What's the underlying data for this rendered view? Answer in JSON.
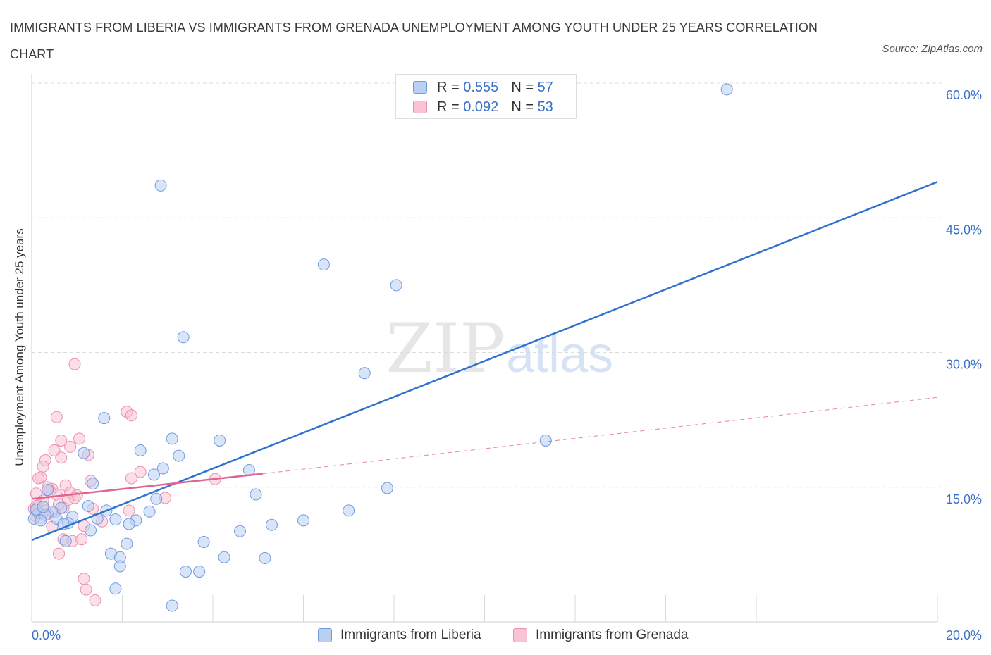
{
  "title": "IMMIGRANTS FROM LIBERIA VS IMMIGRANTS FROM GRENADA UNEMPLOYMENT AMONG YOUTH UNDER 25 YEARS CORRELATION CHART",
  "source": "Source: ZipAtlas.com",
  "watermark": {
    "zip": "ZIP",
    "atlas": "atlas"
  },
  "legend": {
    "liberia": {
      "r_label": "R =",
      "r_value": "0.555",
      "n_label": "N =",
      "n_value": "57"
    },
    "grenada": {
      "r_label": "R =",
      "r_value": "0.092",
      "n_label": "N =",
      "n_value": "53"
    }
  },
  "colors": {
    "liberia_fill": "#b8d0f2",
    "liberia_stroke": "#6f9be0",
    "liberia_line": "#2f73cf",
    "grenada_fill": "#f9c3d4",
    "grenada_stroke": "#ec8fae",
    "grenada_line": "#e0648f",
    "grid": "#dcdcdc",
    "axis_label": "#3b72c8"
  },
  "chart_data": {
    "type": "scatter",
    "title": "IMMIGRANTS FROM LIBERIA VS IMMIGRANTS FROM GRENADA UNEMPLOYMENT AMONG YOUTH UNDER 25 YEARS CORRELATION CHART",
    "xlabel": "",
    "ylabel": "Unemployment Among Youth under 25 years",
    "xlim": [
      0,
      20
    ],
    "ylim": [
      0,
      60
    ],
    "x_tick_labels": [
      "0.0%",
      "20.0%"
    ],
    "y_ticks": [
      15,
      30,
      45,
      60
    ],
    "y_tick_labels": [
      "15.0%",
      "30.0%",
      "45.0%",
      "60.0%"
    ],
    "grid": true,
    "series": [
      {
        "name": "Immigrants from Liberia",
        "points": [
          [
            15.35,
            59.3
          ],
          [
            2.85,
            48.6
          ],
          [
            6.45,
            39.8
          ],
          [
            8.05,
            37.5
          ],
          [
            3.35,
            31.7
          ],
          [
            7.35,
            27.7
          ],
          [
            1.6,
            22.7
          ],
          [
            11.35,
            20.2
          ],
          [
            3.1,
            20.4
          ],
          [
            4.15,
            20.2
          ],
          [
            2.4,
            19.1
          ],
          [
            3.25,
            18.5
          ],
          [
            1.15,
            18.8
          ],
          [
            2.9,
            17.1
          ],
          [
            4.8,
            16.9
          ],
          [
            2.7,
            16.4
          ],
          [
            1.35,
            15.4
          ],
          [
            7.85,
            14.9
          ],
          [
            0.35,
            14.7
          ],
          [
            4.95,
            14.2
          ],
          [
            2.75,
            13.7
          ],
          [
            1.25,
            12.9
          ],
          [
            0.65,
            12.7
          ],
          [
            1.65,
            12.4
          ],
          [
            2.6,
            12.3
          ],
          [
            7.0,
            12.4
          ],
          [
            0.45,
            12.3
          ],
          [
            0.15,
            12.1
          ],
          [
            0.9,
            11.7
          ],
          [
            0.3,
            11.9
          ],
          [
            0.05,
            11.5
          ],
          [
            0.2,
            11.3
          ],
          [
            1.45,
            11.5
          ],
          [
            0.55,
            11.5
          ],
          [
            1.85,
            11.4
          ],
          [
            2.3,
            11.3
          ],
          [
            6.0,
            11.3
          ],
          [
            2.15,
            10.9
          ],
          [
            0.8,
            11.0
          ],
          [
            0.7,
            10.9
          ],
          [
            1.3,
            10.2
          ],
          [
            4.6,
            10.1
          ],
          [
            5.3,
            10.8
          ],
          [
            0.75,
            9.0
          ],
          [
            3.8,
            8.9
          ],
          [
            2.1,
            8.7
          ],
          [
            1.75,
            7.6
          ],
          [
            1.95,
            7.2
          ],
          [
            4.25,
            7.2
          ],
          [
            5.15,
            7.1
          ],
          [
            1.95,
            6.2
          ],
          [
            3.4,
            5.6
          ],
          [
            3.7,
            5.6
          ],
          [
            1.85,
            3.7
          ],
          [
            3.1,
            1.8
          ],
          [
            0.1,
            12.5
          ],
          [
            0.25,
            12.8
          ]
        ]
      },
      {
        "name": "Immigrants from Grenada",
        "points": [
          [
            0.95,
            28.7
          ],
          [
            2.1,
            23.4
          ],
          [
            2.2,
            23.0
          ],
          [
            0.55,
            22.8
          ],
          [
            1.05,
            20.4
          ],
          [
            0.65,
            20.2
          ],
          [
            0.85,
            19.5
          ],
          [
            0.5,
            19.1
          ],
          [
            0.65,
            18.3
          ],
          [
            1.25,
            18.6
          ],
          [
            0.3,
            18.0
          ],
          [
            0.25,
            17.3
          ],
          [
            2.4,
            16.7
          ],
          [
            0.2,
            16.1
          ],
          [
            0.15,
            16.0
          ],
          [
            2.2,
            16.0
          ],
          [
            4.05,
            15.9
          ],
          [
            1.3,
            15.7
          ],
          [
            0.35,
            15.0
          ],
          [
            0.75,
            15.2
          ],
          [
            0.45,
            14.8
          ],
          [
            0.4,
            14.6
          ],
          [
            0.85,
            14.4
          ],
          [
            0.1,
            14.3
          ],
          [
            0.55,
            14.2
          ],
          [
            1.0,
            14.1
          ],
          [
            0.95,
            13.8
          ],
          [
            0.8,
            13.6
          ],
          [
            2.95,
            13.8
          ],
          [
            0.25,
            13.5
          ],
          [
            0.15,
            13.0
          ],
          [
            0.05,
            12.6
          ],
          [
            0.3,
            12.4
          ],
          [
            0.12,
            12.3
          ],
          [
            0.5,
            12.2
          ],
          [
            0.7,
            12.7
          ],
          [
            1.35,
            12.6
          ],
          [
            0.08,
            11.8
          ],
          [
            0.2,
            11.6
          ],
          [
            2.15,
            12.4
          ],
          [
            1.55,
            11.2
          ],
          [
            0.45,
            10.6
          ],
          [
            1.15,
            10.7
          ],
          [
            0.7,
            9.2
          ],
          [
            0.9,
            9.0
          ],
          [
            1.1,
            9.2
          ],
          [
            0.6,
            7.6
          ],
          [
            1.15,
            4.8
          ],
          [
            1.2,
            3.6
          ],
          [
            1.4,
            2.4
          ],
          [
            0.35,
            12.0
          ],
          [
            0.1,
            12.9
          ],
          [
            0.6,
            13.1
          ]
        ]
      }
    ],
    "trendlines": [
      {
        "series": "Immigrants from Liberia",
        "x": [
          0,
          20
        ],
        "y": [
          9.1,
          49.0
        ],
        "style": "solid"
      },
      {
        "series": "Immigrants from Grenada",
        "x": [
          0,
          5.1
        ],
        "y": [
          13.7,
          16.5
        ],
        "style": "solid"
      },
      {
        "series": "Immigrants from Grenada",
        "x": [
          5.1,
          20
        ],
        "y": [
          16.5,
          25.0
        ],
        "style": "dashed"
      }
    ]
  }
}
